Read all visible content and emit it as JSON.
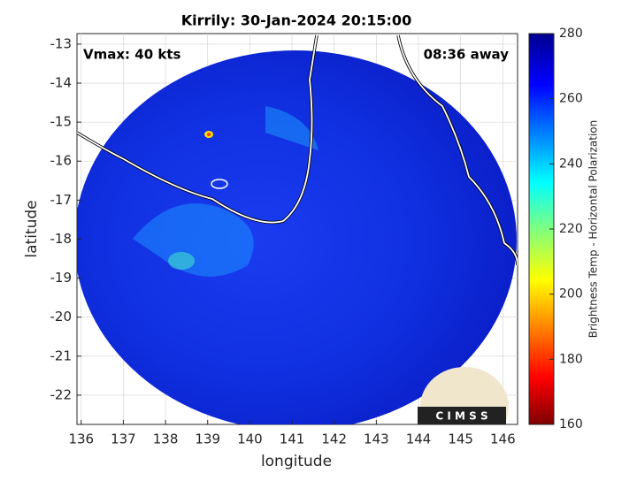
{
  "map": {
    "title": "Kirrily: 30-Jan-2024 20:15:00",
    "annotation_left": "Vmax: 40 kts",
    "annotation_right": "08:36 away",
    "xlabel": "longitude",
    "ylabel": "latitude",
    "xlim": [
      135.9,
      146.35
    ],
    "xticks": [
      136,
      137,
      138,
      139,
      140,
      141,
      142,
      143,
      144,
      145,
      146
    ],
    "ylim": [
      -22.75,
      -12.73
    ],
    "yticks": [
      -13,
      -14,
      -15,
      -16,
      -17,
      -18,
      -19,
      -20,
      -21,
      -22
    ],
    "colorbar": {
      "label": "Brightness Temp - Horizontal Polarization",
      "lim": [
        160,
        280
      ],
      "ticks": [
        160,
        180,
        200,
        220,
        240,
        260,
        280
      ]
    },
    "logo_text": "C I M S S"
  }
}
